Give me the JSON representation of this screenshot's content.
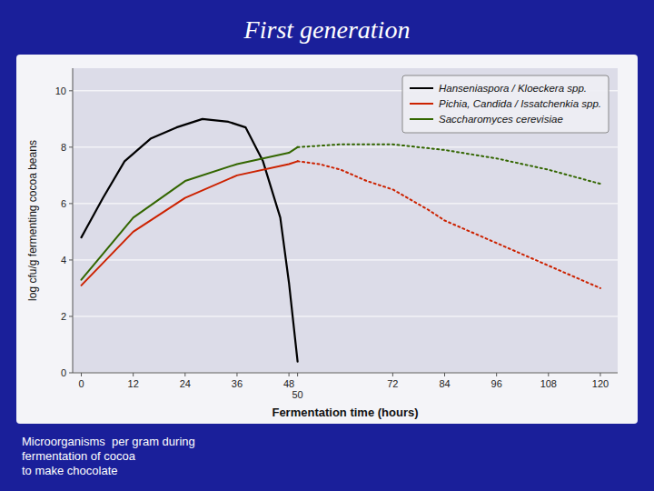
{
  "chart_data": {
    "type": "line",
    "title": "First generation",
    "subtitle": [
      "Microorganisms  per gram during",
      "fermentation of cocoa",
      "to make chocolate"
    ],
    "xlabel": "Fermentation time (hours)",
    "ylabel": "log cfu/g fermenting cocoa beans",
    "xlim": [
      -2,
      124
    ],
    "ylim": [
      0,
      10.8
    ],
    "xticks": [
      0,
      12,
      24,
      36,
      48,
      50,
      72,
      84,
      96,
      108,
      120
    ],
    "yticks": [
      0,
      2,
      4,
      6,
      8,
      10
    ],
    "grid": true,
    "legend": "upper right",
    "series": [
      {
        "name": "Hanseniaspora / Kloeckera spp.",
        "color": "#000000",
        "line_style": "solid",
        "x": [
          0,
          5,
          10,
          16,
          22,
          28,
          34,
          38,
          42,
          46,
          48,
          50
        ],
        "values": [
          4.8,
          6.2,
          7.5,
          8.3,
          8.7,
          9.0,
          8.9,
          8.7,
          7.5,
          5.5,
          3.2,
          0.4
        ]
      },
      {
        "name": "Pichia, Candida / Issatchenkia spp.",
        "color": "#cc2200",
        "line_style": "solid",
        "x": [
          0,
          12,
          24,
          36,
          48,
          50
        ],
        "values": [
          3.1,
          5.0,
          6.2,
          7.0,
          7.4,
          7.5
        ]
      },
      {
        "color": "#cc2200",
        "line_style": "dotted",
        "x": [
          50,
          55,
          60,
          66,
          72,
          80,
          84,
          96,
          108,
          120
        ],
        "values": [
          7.5,
          7.4,
          7.2,
          6.8,
          6.5,
          5.8,
          5.4,
          4.6,
          3.8,
          3.0
        ]
      },
      {
        "name": "Saccharomyces cerevisiae",
        "color": "#336600",
        "line_style": "solid",
        "x": [
          0,
          12,
          24,
          36,
          48,
          50
        ],
        "values": [
          3.3,
          5.5,
          6.8,
          7.4,
          7.8,
          8.0
        ]
      },
      {
        "color": "#336600",
        "line_style": "dotted",
        "x": [
          50,
          60,
          72,
          84,
          96,
          108,
          120
        ],
        "values": [
          8.0,
          8.1,
          8.1,
          7.9,
          7.6,
          7.2,
          6.7
        ]
      }
    ]
  }
}
